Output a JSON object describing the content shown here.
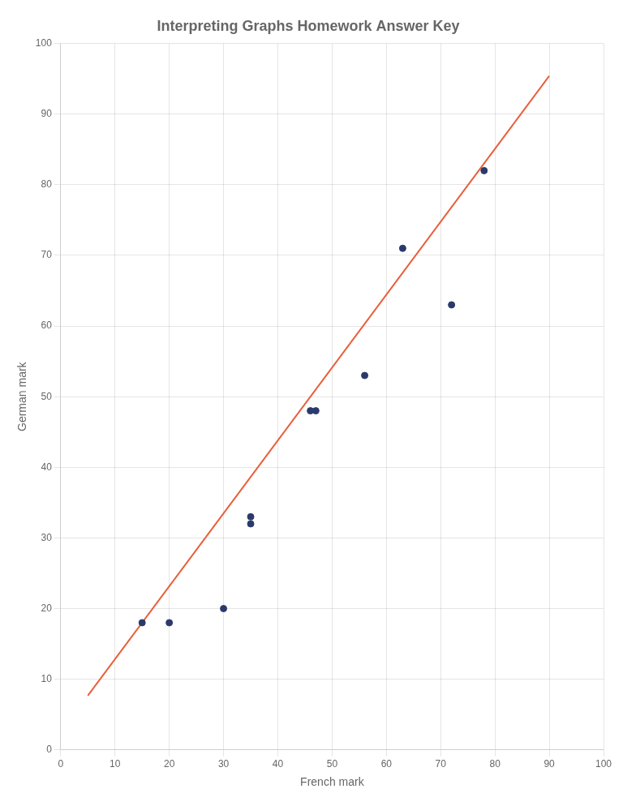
{
  "chart_data": {
    "type": "scatter",
    "title": "Interpreting Graphs Homework Answer Key",
    "xlabel": "French mark",
    "ylabel": "German mark",
    "series": [
      {
        "type": "scatter",
        "color": "#2b3a6b",
        "marker": "circle",
        "x": [
          15,
          20,
          30,
          35,
          35,
          46,
          47,
          56,
          63,
          72,
          78
        ],
        "values": [
          18,
          18,
          20,
          32,
          33,
          48,
          48,
          53,
          71,
          63,
          82
        ]
      },
      {
        "type": "line",
        "color": "#e8603c",
        "line_style": "solid",
        "x": [
          5,
          90
        ],
        "values": [
          7.68,
          95.4
        ]
      }
    ],
    "xlim": [
      0,
      100
    ],
    "ylim": [
      0,
      100
    ],
    "xticks": [
      0,
      10,
      20,
      30,
      40,
      50,
      60,
      70,
      80,
      90,
      100
    ],
    "yticks": [
      0,
      10,
      20,
      30,
      40,
      50,
      60,
      70,
      80,
      90,
      100
    ],
    "grid": true
  }
}
